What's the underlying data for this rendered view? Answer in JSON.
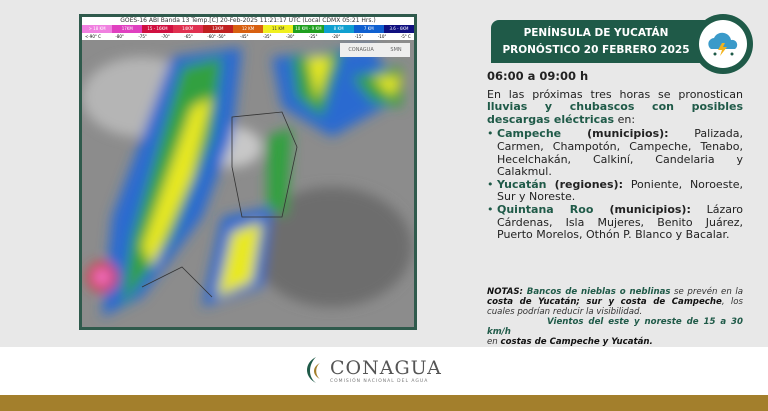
{
  "map": {
    "header": "GOES-16 ABI Banda 13 Temp.[C] 20-Feb-2025 11:21:17 UTC (Local CDMX 05:21 Hrs.)",
    "scale": [
      {
        "label": "> 18 KM",
        "color": "#f080e0"
      },
      {
        "label": "17KM",
        "color": "#e040c0"
      },
      {
        "label": "15 - 16KM",
        "color": "#d01040"
      },
      {
        "label": "14KM",
        "color": "#e03050"
      },
      {
        "label": "13KM",
        "color": "#c02020"
      },
      {
        "label": "12 KM",
        "color": "#d86010"
      },
      {
        "label": "11 KM",
        "color": "#f0f020"
      },
      {
        "label": "10 KM - 9 KM",
        "color": "#20a020"
      },
      {
        "label": "8 KM",
        "color": "#10a0d0"
      },
      {
        "label": "7 KM",
        "color": "#1060d0"
      },
      {
        "label": "3.6 - 6KM",
        "color": "#101080"
      }
    ],
    "ticks": [
      "<-90° C",
      "-80°",
      "-75°",
      "-70°",
      "-65°",
      "-60° -50°",
      "-45°",
      "-35°",
      "-30°",
      "-25°",
      "-20°",
      "-15°",
      "-10°",
      "-5° C"
    ],
    "logos": [
      "CONAGUA",
      "SMN"
    ]
  },
  "header": {
    "line1": "PENÍNSULA DE YUCATÁN",
    "line2": "PRONÓSTICO 20 FEBRERO 2025",
    "icon": "storm-cloud-icon"
  },
  "forecast": {
    "time": "06:00 a 09:00 h",
    "intro": "En las próximas tres horas se pronostican ",
    "intro_bold": "lluvias y chubascos con posibles descargas eléctricas",
    "intro_end": " en:",
    "items": [
      {
        "name": "Campeche",
        "kind": " (municipios):",
        "places": " Palizada, Carmen, Champotón, Campeche, Tenabo, Hecelchakán, Calkiní, Candelaria y Calakmul."
      },
      {
        "name": "Yucatán",
        "kind": " (regiones):",
        "places": " Poniente, Noroeste, Sur y Noreste."
      },
      {
        "name": "Quintana Roo",
        "kind": " (municipios):",
        "places": " Lázaro Cárdenas, Isla Mujeres, Benito Juárez, Puerto Morelos, Othón P. Blanco y Bacalar."
      }
    ]
  },
  "notes": {
    "label": "NOTAS:",
    "p1": " Bancos de nieblas o neblinas",
    "p2": " se prevén en la ",
    "p3": "costa de Yucatán; sur y costa de Campeche",
    "p4": ", los cuales podrían reducir la visibilidad.",
    "p5": "Vientos del este y noreste de 15 a 30 km/h",
    "p6": " en ",
    "p7": "costas de Campeche y Yucatán."
  },
  "footer": {
    "org": "CONAGUA",
    "sub": "COMISIÓN NACIONAL DEL AGUA"
  },
  "colors": {
    "green": "#1f5a48",
    "gold": "#a37f2c"
  }
}
